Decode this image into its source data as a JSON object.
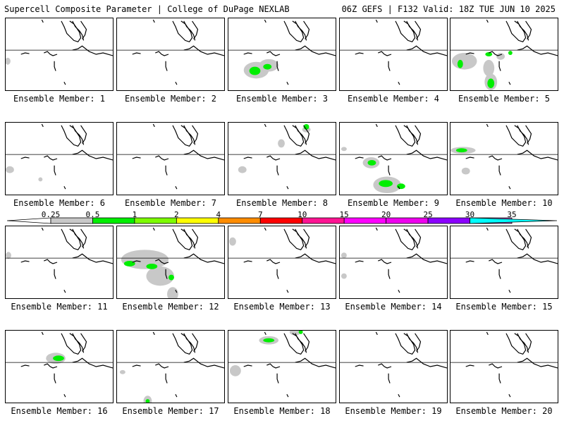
{
  "header": {
    "left_title": "Supercell Composite Parameter | College of DuPage NEXLAB",
    "right_title": "06Z GEFS | F132 Valid: 18Z TUE JUN 10 2025"
  },
  "colorbar": {
    "labels": [
      "0.25",
      "0.5",
      "1",
      "2",
      "4",
      "7",
      "10",
      "15",
      "20",
      "25",
      "30",
      "35"
    ],
    "bins": [
      {
        "from": "0.25",
        "to": "0.5",
        "color": "#c8c8c8"
      },
      {
        "from": "0.5",
        "to": "1",
        "color": "#00ee00"
      },
      {
        "from": "1",
        "to": "2",
        "color": "#7cfc00"
      },
      {
        "from": "2",
        "to": "4",
        "color": "#ffff00"
      },
      {
        "from": "4",
        "to": "7",
        "color": "#ff8c00"
      },
      {
        "from": "7",
        "to": "10",
        "color": "#ff0000"
      },
      {
        "from": "10",
        "to": "15",
        "color": "#ff1493"
      },
      {
        "from": "15",
        "to": "20",
        "color": "#ff00ff"
      },
      {
        "from": "20",
        "to": "25",
        "color": "#ee00ee"
      },
      {
        "from": "25",
        "to": "30",
        "color": "#8b00ff"
      },
      {
        "from": "30",
        "to": "35",
        "color": "#b266d6"
      },
      {
        "from": "35",
        "to": "",
        "color": "#00ffff"
      }
    ]
  },
  "members": [
    {
      "label": "Ensemble Member: 1",
      "fields": [
        {
          "gray": [
            [
              3,
              62,
              4,
              5
            ]
          ]
        }
      ]
    },
    {
      "label": "Ensemble Member: 2",
      "fields": []
    },
    {
      "label": "Ensemble Member: 3",
      "fields": [
        {
          "gray": [
            [
              40,
              75,
              18,
              12
            ],
            [
              58,
              68,
              14,
              9
            ]
          ],
          "green": [
            [
              38,
              76,
              8,
              6
            ],
            [
              56,
              70,
              6,
              4
            ]
          ]
        }
      ]
    },
    {
      "label": "Ensemble Member: 4",
      "fields": []
    },
    {
      "label": "Ensemble Member: 5",
      "fields": [
        {
          "gray": [
            [
              20,
              62,
              18,
              12
            ],
            [
              55,
              72,
              8,
              12
            ],
            [
              58,
              92,
              9,
              12
            ],
            [
              72,
              55,
              6,
              5
            ]
          ],
          "green": [
            [
              14,
              66,
              4,
              6
            ],
            [
              58,
              94,
              5,
              7
            ],
            [
              55,
              52,
              5,
              3
            ],
            [
              86,
              50,
              3,
              3
            ]
          ]
        }
      ]
    },
    {
      "label": "Ensemble Member: 6",
      "fields": [
        {
          "gray": [
            [
              6,
              68,
              6,
              5
            ],
            [
              50,
              82,
              3,
              3
            ]
          ]
        }
      ]
    },
    {
      "label": "Ensemble Member: 7",
      "fields": []
    },
    {
      "label": "Ensemble Member: 8",
      "fields": [
        {
          "gray": [
            [
              76,
              30,
              5,
              6
            ],
            [
              112,
              10,
              6,
              4
            ],
            [
              20,
              68,
              6,
              5
            ]
          ],
          "green": [
            [
              112,
              6,
              4,
              4
            ]
          ]
        }
      ]
    },
    {
      "label": "Ensemble Member: 9",
      "fields": [
        {
          "gray": [
            [
              45,
              58,
              12,
              8
            ],
            [
              68,
              90,
              20,
              12
            ],
            [
              6,
              38,
              4,
              3
            ]
          ],
          "green": [
            [
              46,
              58,
              6,
              4
            ],
            [
              66,
              88,
              10,
              5
            ],
            [
              88,
              92,
              6,
              4
            ]
          ]
        }
      ]
    },
    {
      "label": "Ensemble Member: 10",
      "fields": [
        {
          "gray": [
            [
              18,
              40,
              18,
              5
            ],
            [
              22,
              70,
              6,
              5
            ]
          ],
          "green": [
            [
              16,
              40,
              8,
              3
            ]
          ]
        }
      ]
    },
    {
      "label": "Ensemble Member: 11",
      "fields": [
        {
          "gray": [
            [
              4,
              42,
              4,
              5
            ]
          ]
        }
      ]
    },
    {
      "label": "Ensemble Member: 12",
      "fields": [
        {
          "gray": [
            [
              40,
              48,
              34,
              14
            ],
            [
              62,
              72,
              20,
              14
            ],
            [
              80,
              98,
              8,
              10
            ]
          ],
          "green": [
            [
              18,
              54,
              8,
              4
            ],
            [
              50,
              58,
              8,
              4
            ],
            [
              78,
              74,
              4,
              4
            ]
          ]
        }
      ]
    },
    {
      "label": "Ensemble Member: 13",
      "fields": [
        {
          "gray": [
            [
              6,
              22,
              5,
              6
            ]
          ]
        }
      ]
    },
    {
      "label": "Ensemble Member: 14",
      "fields": [
        {
          "gray": [
            [
              6,
              42,
              4,
              4
            ],
            [
              6,
              72,
              4,
              4
            ]
          ]
        }
      ]
    },
    {
      "label": "Ensemble Member: 15",
      "fields": []
    },
    {
      "label": "Ensemble Member: 16",
      "fields": [
        {
          "gray": [
            [
              72,
              40,
              14,
              8
            ]
          ],
          "green": [
            [
              76,
              40,
              8,
              4
            ]
          ]
        }
      ]
    },
    {
      "label": "Ensemble Member: 17",
      "fields": [
        {
          "gray": [
            [
              44,
              102,
              6,
              8
            ],
            [
              8,
              60,
              4,
              3
            ]
          ],
          "green": [
            [
              44,
              102,
              3,
              3
            ]
          ]
        }
      ]
    },
    {
      "label": "Ensemble Member: 18",
      "fields": [
        {
          "gray": [
            [
              58,
              14,
              14,
              6
            ],
            [
              96,
              2,
              8,
              5
            ],
            [
              10,
              58,
              8,
              8
            ]
          ],
          "green": [
            [
              58,
              14,
              8,
              3
            ],
            [
              104,
              2,
              3,
              3
            ]
          ]
        }
      ]
    },
    {
      "label": "Ensemble Member: 19",
      "fields": []
    },
    {
      "label": "Ensemble Member: 20",
      "fields": []
    }
  ]
}
